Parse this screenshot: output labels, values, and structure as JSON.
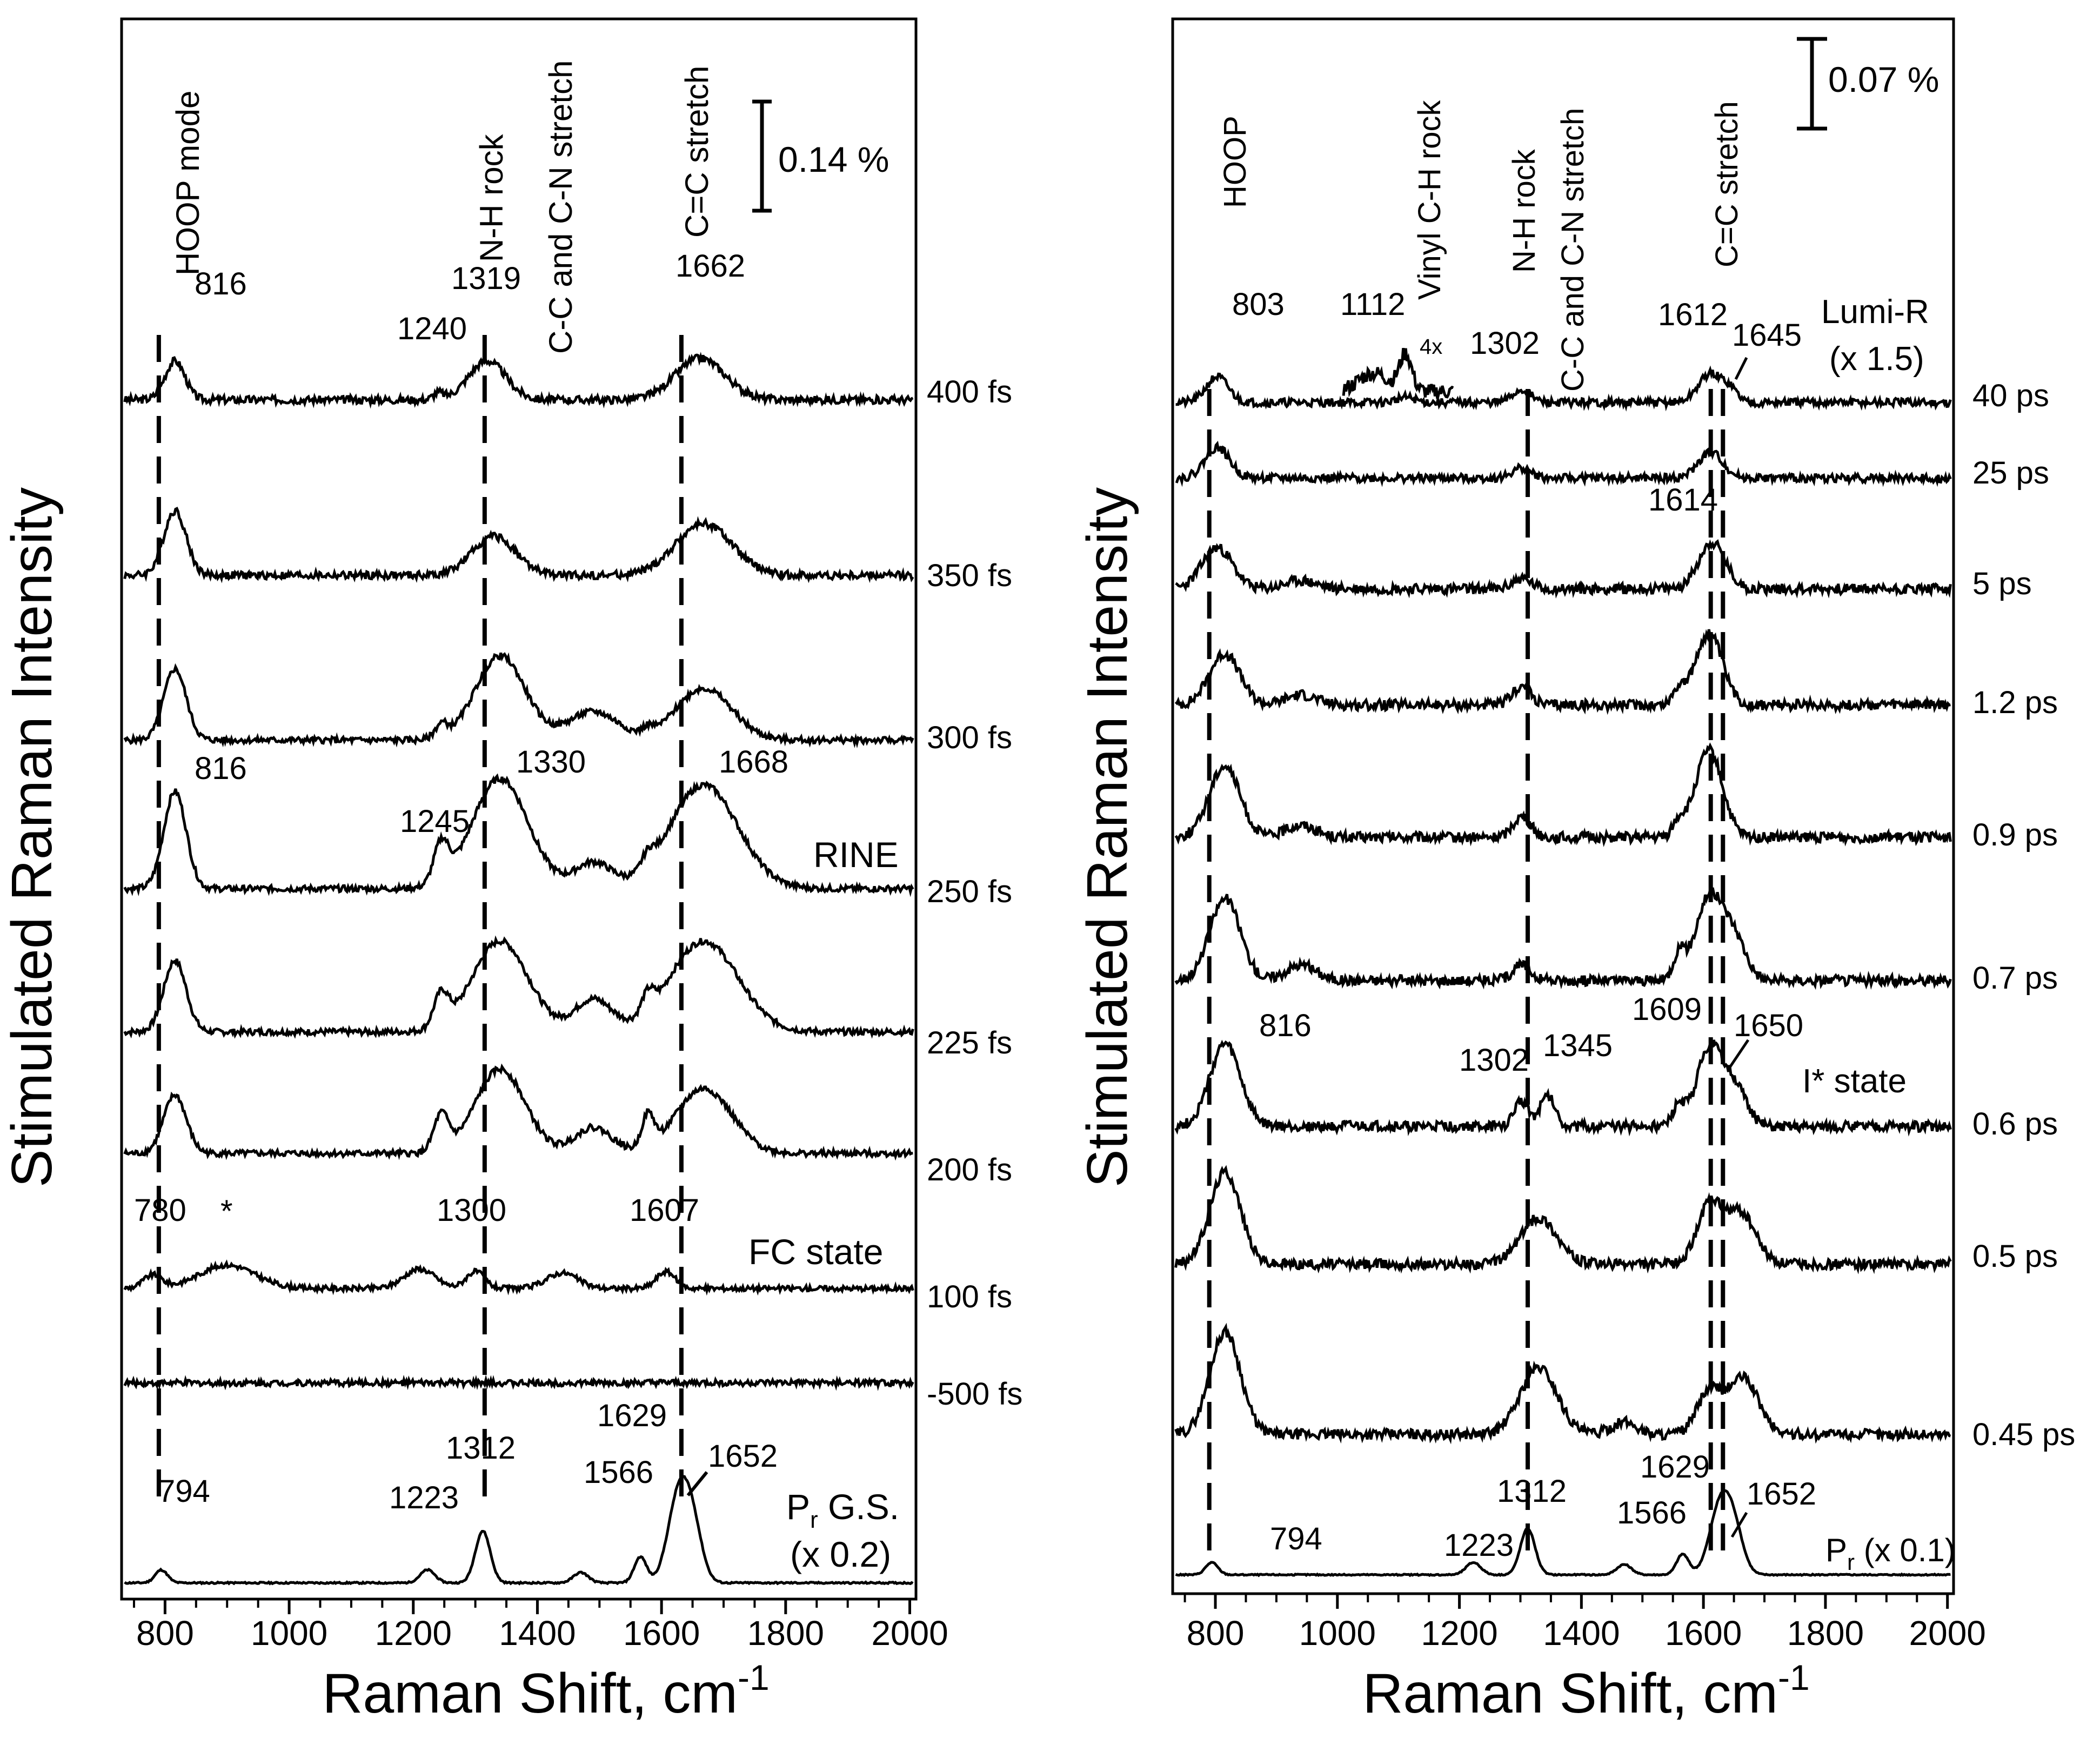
{
  "chart_data": [
    {
      "type": "line",
      "ylabel": "Stimulated Raman Intensity",
      "xlabel": "Raman Shift, cm",
      "xlabel_sup": "-1",
      "xlim": [
        730,
        2010
      ],
      "xticks": [
        "800",
        "1000",
        "1200",
        "1400",
        "1600",
        "1800",
        "2000"
      ],
      "xtick_values": [
        800,
        1000,
        1200,
        1400,
        1600,
        1800,
        2000
      ],
      "scalebar": "0.14 %",
      "dashed_lines": [
        790,
        1315,
        1632
      ],
      "mode_labels": [
        "HOOP mode",
        "N-H rock",
        "C-C and C-N stretch",
        "C=C stretch"
      ],
      "mode_label_x": [
        810,
        1315,
        1395,
        1652
      ],
      "traces": [
        {
          "label": "400 fs",
          "offset": 0.0,
          "peaks": [
            [
              816,
              0.3,
              16
            ],
            [
              1240,
              0.05,
              8
            ],
            [
              1319,
              0.3,
              30
            ],
            [
              1662,
              0.32,
              40
            ]
          ],
          "noise": 0.015,
          "seed": 3
        },
        {
          "label": "350 fs",
          "offset": 1.0,
          "peaks": [
            [
              816,
              0.5,
              18
            ],
            [
              1330,
              0.3,
              35
            ],
            [
              1668,
              0.4,
              45
            ]
          ],
          "noise": 0.015,
          "seed": 4
        },
        {
          "label": "300 fs",
          "offset": 2.0,
          "peaks": [
            [
              816,
              0.55,
              18
            ],
            [
              1245,
              0.1,
              10
            ],
            [
              1340,
              0.65,
              40
            ],
            [
              1490,
              0.22,
              40
            ],
            [
              1578,
              0.05,
              8
            ],
            [
              1668,
              0.4,
              45
            ]
          ],
          "noise": 0.012,
          "seed": 5
        },
        {
          "label": "250 fs",
          "offset": 3.0,
          "peaks": [
            [
              816,
              0.75,
              18
            ],
            [
              1245,
              0.3,
              12
            ],
            [
              1340,
              0.85,
              45
            ],
            [
              1490,
              0.2,
              30
            ],
            [
              1578,
              0.1,
              10
            ],
            [
              1668,
              0.8,
              55
            ]
          ],
          "noise": 0.012,
          "seed": 6
        },
        {
          "label": "225 fs",
          "offset": 4.0,
          "peaks": [
            [
              816,
              0.55,
              18
            ],
            [
              1245,
              0.25,
              12
            ],
            [
              1340,
              0.7,
              45
            ],
            [
              1490,
              0.25,
              30
            ],
            [
              1578,
              0.15,
              10
            ],
            [
              1668,
              0.7,
              55
            ]
          ],
          "noise": 0.012,
          "seed": 7
        },
        {
          "label": "200 fs",
          "offset": 5.0,
          "peaks": [
            [
              816,
              0.45,
              18
            ],
            [
              1245,
              0.28,
              12
            ],
            [
              1340,
              0.65,
              40
            ],
            [
              1490,
              0.2,
              30
            ],
            [
              1578,
              0.25,
              10
            ],
            [
              1668,
              0.5,
              45
            ]
          ],
          "noise": 0.012,
          "seed": 8
        },
        {
          "label": "100 fs",
          "offset": 6.0,
          "peaks": [
            [
              780,
              0.1,
              15
            ],
            [
              900,
              0.18,
              45
            ],
            [
              1210,
              0.15,
              25
            ],
            [
              1300,
              0.13,
              15
            ],
            [
              1440,
              0.12,
              25
            ],
            [
              1607,
              0.13,
              15
            ]
          ],
          "noise": 0.01,
          "seed": 9
        },
        {
          "label": "-500 fs",
          "offset": 7.0,
          "peaks": [],
          "noise": 0.012,
          "seed": 10
        },
        {
          "label": "",
          "offset": 8.0,
          "peaks": [
            [
              794,
              0.1,
              10
            ],
            [
              1223,
              0.1,
              12
            ],
            [
              1312,
              0.4,
              12
            ],
            [
              1470,
              0.08,
              12
            ],
            [
              1566,
              0.2,
              10
            ],
            [
              1629,
              0.7,
              18
            ],
            [
              1652,
              0.3,
              15
            ]
          ],
          "noise": 0.003,
          "seed": 11
        }
      ],
      "trace_labels": [
        "400 fs",
        "350 fs",
        "300 fs",
        "250 fs",
        "225 fs",
        "200 fs",
        "100 fs",
        "-500 fs"
      ],
      "annotations": [
        "816",
        "1240",
        "1319",
        "1662",
        "816",
        "1245",
        "1330",
        "1668",
        "RINE",
        "780",
        "*",
        "1300",
        "1607",
        "FC state",
        "794",
        "1223",
        "1312",
        "1566",
        "1629",
        "1652",
        "P",
        "r",
        " G.S.",
        "(x 0.2)"
      ]
    },
    {
      "type": "line",
      "ylabel": "Stimulated Raman Intensity",
      "xlabel": "Raman Shift, cm",
      "xlabel_sup": "-1",
      "xlim": [
        730,
        2010
      ],
      "xticks": [
        "800",
        "1000",
        "1200",
        "1400",
        "1600",
        "1800",
        "2000"
      ],
      "xtick_values": [
        800,
        1000,
        1200,
        1400,
        1600,
        1800,
        2000
      ],
      "scalebar": "0.07 %",
      "dashed_lines": [
        790,
        1312,
        1612,
        1632
      ],
      "mode_labels": [
        "HOOP",
        "Vinyl C-H rock",
        "N-H rock",
        "C-C and C-N stretch",
        "C=C stretch"
      ],
      "mode_label_x": [
        810,
        1085,
        1302,
        1370,
        1610
      ],
      "traces": [
        {
          "label": "40 ps",
          "offset": 0.0,
          "peaks": [
            [
              803,
              0.25,
              18
            ],
            [
              1112,
              0.05,
              15
            ],
            [
              1302,
              0.12,
              15
            ],
            [
              1612,
              0.28,
              20
            ],
            [
              1645,
              0.1,
              12
            ]
          ],
          "noise": 0.02,
          "seed": 21
        },
        {
          "label": "25 ps",
          "offset": 1.0,
          "peaks": [
            [
              803,
              0.3,
              20
            ],
            [
              1302,
              0.1,
              15
            ],
            [
              1612,
              0.25,
              20
            ]
          ],
          "noise": 0.02,
          "seed": 22
        },
        {
          "label": "5 ps",
          "offset": 2.0,
          "peaks": [
            [
              803,
              0.4,
              25
            ],
            [
              940,
              0.08,
              25
            ],
            [
              1302,
              0.1,
              15
            ],
            [
              1614,
              0.45,
              22
            ]
          ],
          "noise": 0.025,
          "seed": 23
        },
        {
          "label": "1.2 ps",
          "offset": 3.0,
          "peaks": [
            [
              815,
              0.5,
              25
            ],
            [
              940,
              0.1,
              25
            ],
            [
              1302,
              0.18,
              15
            ],
            [
              1560,
              0.15,
              10
            ],
            [
              1609,
              0.7,
              22
            ]
          ],
          "noise": 0.025,
          "seed": 24
        },
        {
          "label": "0.9 ps",
          "offset": 4.0,
          "peaks": [
            [
              815,
              0.7,
              25
            ],
            [
              940,
              0.12,
              25
            ],
            [
              1302,
              0.2,
              15
            ],
            [
              1560,
              0.15,
              10
            ],
            [
              1609,
              0.85,
              22
            ]
          ],
          "noise": 0.025,
          "seed": 25
        },
        {
          "label": "0.7 ps",
          "offset": 5.0,
          "peaks": [
            [
              816,
              0.8,
              25
            ],
            [
              940,
              0.15,
              25
            ],
            [
              1302,
              0.15,
              15
            ],
            [
              1560,
              0.25,
              10
            ],
            [
              1609,
              0.8,
              22
            ],
            [
              1650,
              0.4,
              20
            ]
          ],
          "noise": 0.025,
          "seed": 26
        },
        {
          "label": "0.6 ps",
          "offset": 6.0,
          "peaks": [
            [
              816,
              0.8,
              25
            ],
            [
              1302,
              0.25,
              12
            ],
            [
              1345,
              0.3,
              12
            ],
            [
              1560,
              0.2,
              10
            ],
            [
              1609,
              0.75,
              20
            ],
            [
              1650,
              0.4,
              20
            ]
          ],
          "noise": 0.025,
          "seed": 27
        },
        {
          "label": "0.5 ps",
          "offset": 7.0,
          "peaks": [
            [
              816,
              0.9,
              25
            ],
            [
              1330,
              0.45,
              30
            ],
            [
              1609,
              0.55,
              20
            ],
            [
              1660,
              0.5,
              25
            ]
          ],
          "noise": 0.025,
          "seed": 28
        },
        {
          "label": "0.45 ps",
          "offset": 8.0,
          "peaks": [
            [
              816,
              1.0,
              25
            ],
            [
              1330,
              0.65,
              30
            ],
            [
              1470,
              0.12,
              20
            ],
            [
              1609,
              0.4,
              20
            ],
            [
              1665,
              0.55,
              25
            ]
          ],
          "noise": 0.025,
          "seed": 29
        },
        {
          "label": "",
          "offset": 9.0,
          "peaks": [
            [
              794,
              0.12,
              10
            ],
            [
              1223,
              0.12,
              12
            ],
            [
              1312,
              0.45,
              12
            ],
            [
              1470,
              0.1,
              12
            ],
            [
              1566,
              0.2,
              10
            ],
            [
              1629,
              0.7,
              18
            ],
            [
              1652,
              0.3,
              15
            ]
          ],
          "noise": 0.003,
          "seed": 30
        }
      ],
      "trace_labels": [
        "40 ps",
        "25 ps",
        "5 ps",
        "1.2 ps",
        "0.9 ps",
        "0.7 ps",
        "0.6 ps",
        "0.5 ps",
        "0.45 ps"
      ],
      "annotations": [
        "803",
        "1112",
        "4x",
        "1302",
        "1612",
        "1645",
        "Lumi-R",
        "(x 1.5)",
        "1614",
        "816",
        "1609",
        "1650",
        "1302",
        "1345",
        "I* state",
        "794",
        "1223",
        "1312",
        "1566",
        "1629",
        "1652",
        "P",
        "r",
        " (x 0.1)"
      ]
    }
  ]
}
